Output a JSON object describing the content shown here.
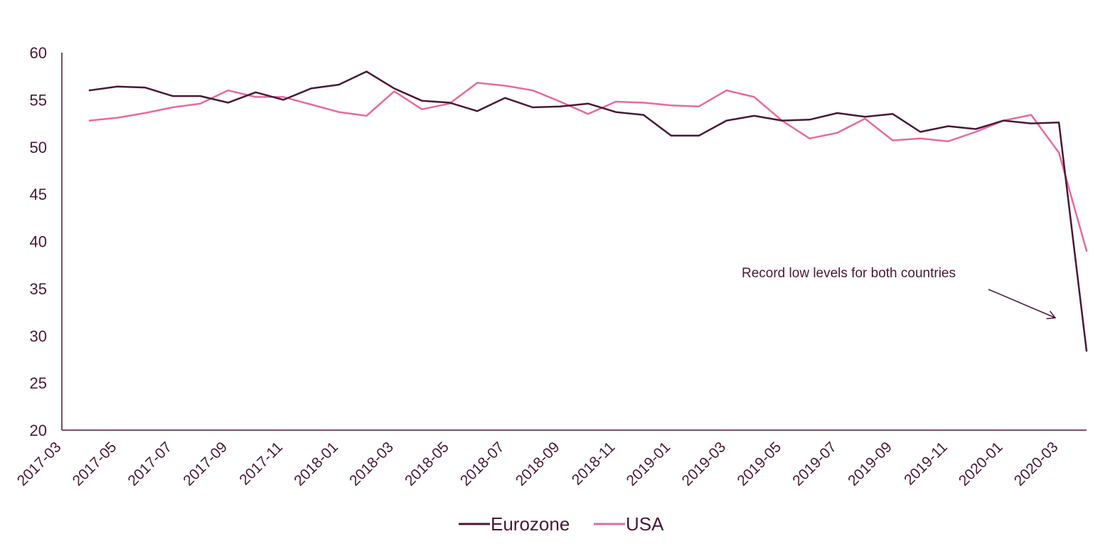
{
  "chart_data": {
    "type": "line",
    "x": [
      "2017-04",
      "2017-05",
      "2017-06",
      "2017-07",
      "2017-08",
      "2017-09",
      "2017-10",
      "2017-11",
      "2017-12",
      "2018-01",
      "2018-02",
      "2018-03",
      "2018-04",
      "2018-05",
      "2018-06",
      "2018-07",
      "2018-08",
      "2018-09",
      "2018-10",
      "2018-11",
      "2018-12",
      "2019-01",
      "2019-02",
      "2019-03",
      "2019-04",
      "2019-05",
      "2019-06",
      "2019-07",
      "2019-08",
      "2019-09",
      "2019-10",
      "2019-11",
      "2019-12",
      "2020-01",
      "2020-02",
      "2020-03",
      "2020-04"
    ],
    "x_tick_labels": [
      "2017-03",
      "2017-05",
      "2017-07",
      "2017-09",
      "2017-11",
      "2018-01",
      "2018-03",
      "2018-05",
      "2018-07",
      "2018-09",
      "2018-11",
      "2019-01",
      "2019-03",
      "2019-05",
      "2019-07",
      "2019-09",
      "2019-11",
      "2020-01",
      "2020-03"
    ],
    "series": [
      {
        "name": "Eurozone",
        "color": "#4a1838",
        "values": [
          56.0,
          56.4,
          56.3,
          55.4,
          55.4,
          54.7,
          55.8,
          55.0,
          56.2,
          56.6,
          58.0,
          56.2,
          54.9,
          54.7,
          53.8,
          55.2,
          54.2,
          54.3,
          54.6,
          53.7,
          53.4,
          51.2,
          51.2,
          52.8,
          53.3,
          52.8,
          52.9,
          53.6,
          53.2,
          53.5,
          51.6,
          52.2,
          51.9,
          52.8,
          52.5,
          52.6,
          28.4
        ]
      },
      {
        "name": "USA",
        "color": "#e86a9e",
        "values": [
          52.8,
          53.1,
          53.6,
          54.2,
          54.6,
          56.0,
          55.3,
          55.3,
          54.5,
          53.7,
          53.3,
          55.9,
          54.0,
          54.6,
          56.8,
          56.5,
          56.0,
          54.8,
          53.5,
          54.8,
          54.7,
          54.4,
          54.3,
          56.0,
          55.3,
          52.8,
          50.9,
          51.5,
          53.0,
          50.7,
          50.9,
          50.6,
          51.6,
          52.8,
          53.4,
          49.4,
          39.0
        ]
      }
    ],
    "y_ticks": [
      20,
      25,
      30,
      35,
      40,
      45,
      50,
      55,
      60
    ],
    "ylim": [
      20,
      60
    ],
    "annotation": {
      "text": "Record low levels for both countries"
    },
    "legend": {
      "position": "bottom-center"
    },
    "grid": false,
    "axis_color": "#4a1838",
    "text_color": "#4a1838"
  }
}
